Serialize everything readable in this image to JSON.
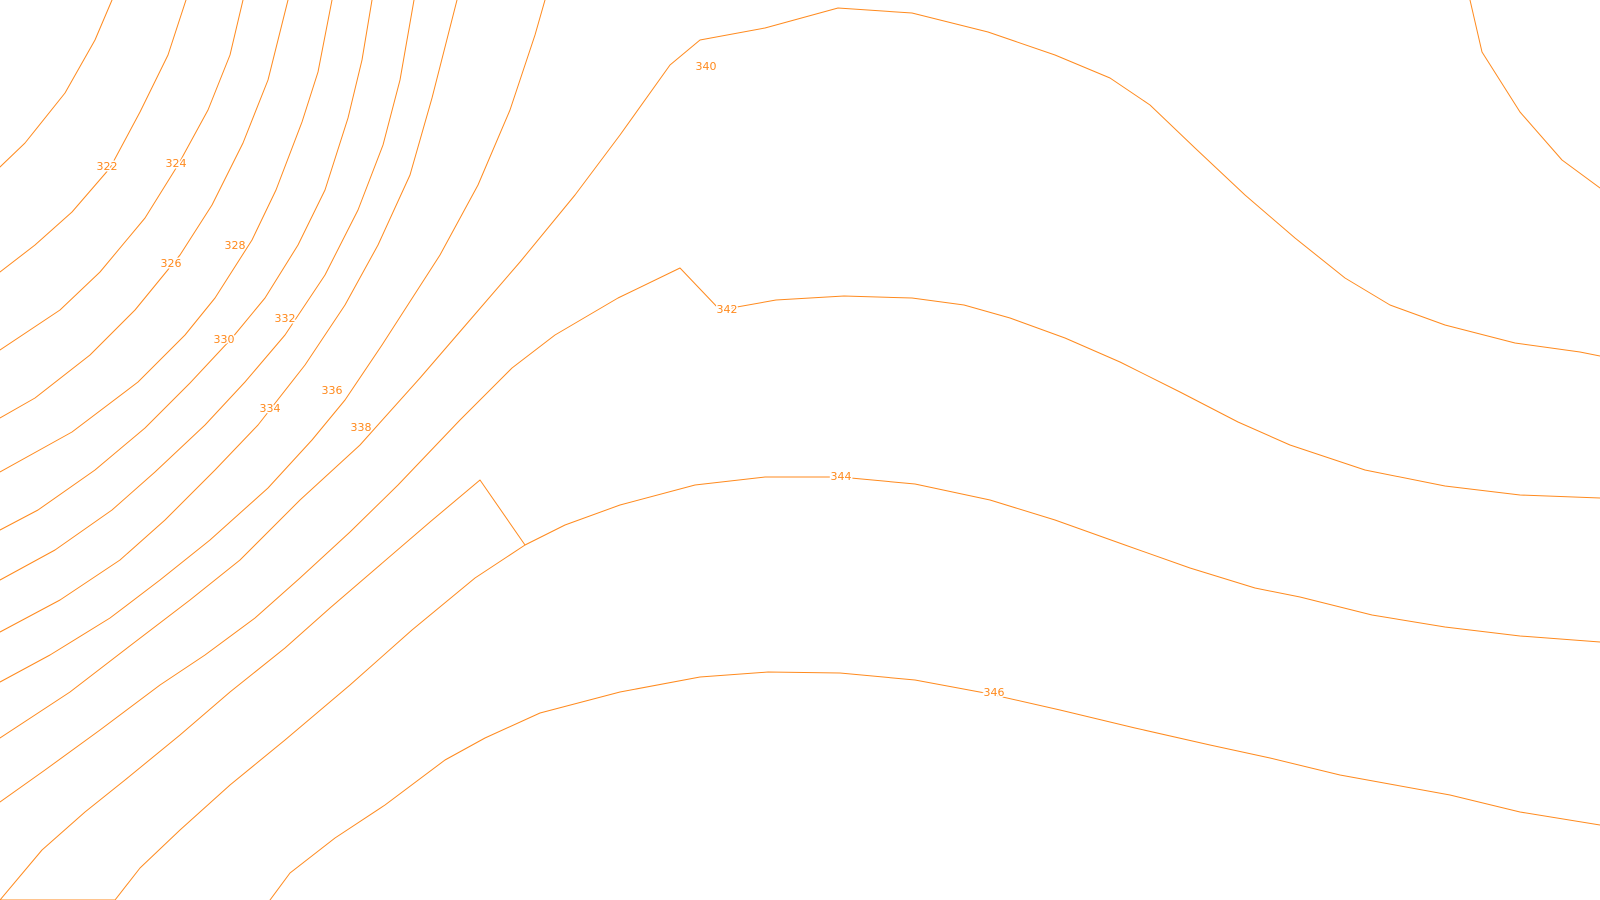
{
  "map": {
    "line_color": "#ff8a1e",
    "background_color": "#ffffff",
    "contour_labels": {
      "c322": "322",
      "c324": "324",
      "c326": "326",
      "c328": "328",
      "c330": "330",
      "c332": "332",
      "c334": "334",
      "c336": "336",
      "c338": "338",
      "c340": "340",
      "c342": "342",
      "c344": "344",
      "c346": "346"
    }
  }
}
